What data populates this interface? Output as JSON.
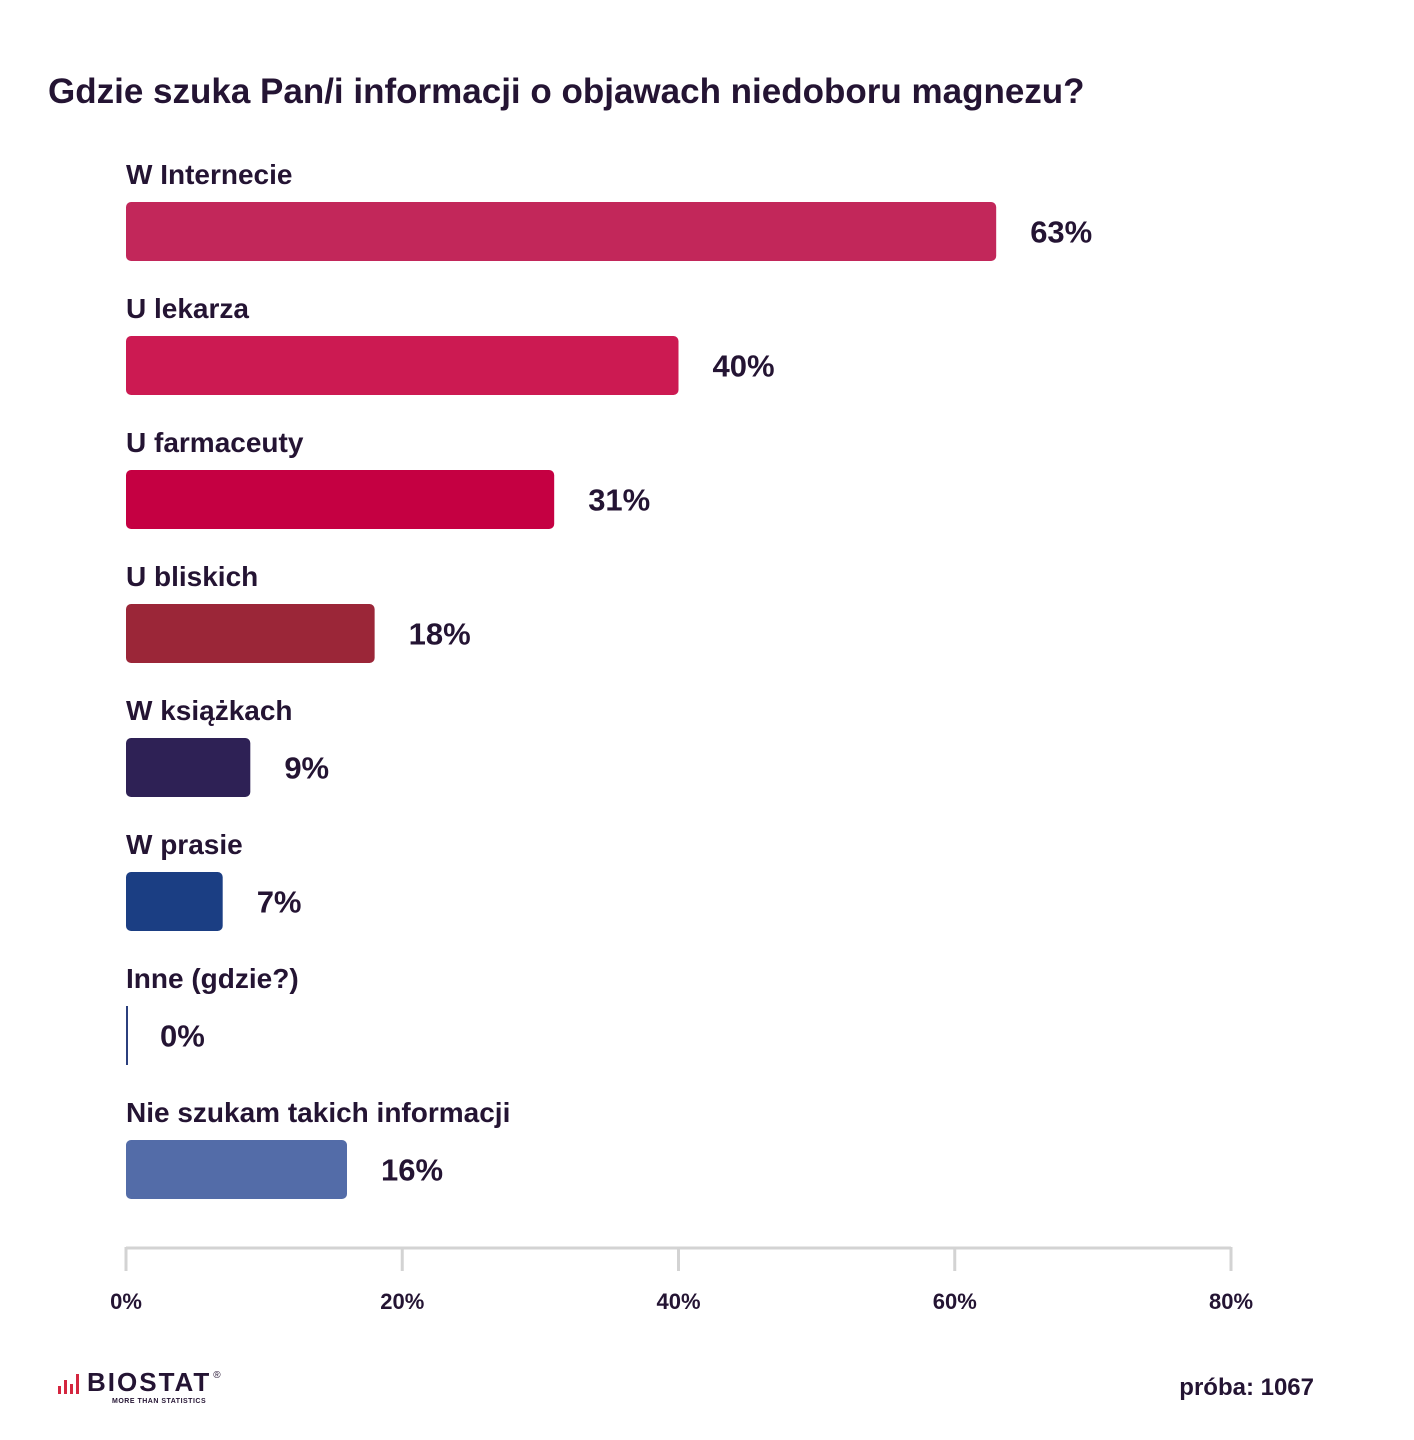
{
  "chart_data": {
    "type": "bar",
    "orientation": "horizontal",
    "title": "Gdzie szuka Pan/i informacji o objawach niedoboru magnezu?",
    "categories": [
      "W Internecie",
      "U lekarza",
      "U farmaceuty",
      "U bliskich",
      "W książkach",
      "W prasie",
      "Inne (gdzie?)",
      "Nie szukam takich informacji"
    ],
    "values": [
      63,
      40,
      31,
      18,
      9,
      7,
      0,
      16
    ],
    "value_labels": [
      "63%",
      "40%",
      "31%",
      "18%",
      "9%",
      "7%",
      "0%",
      "16%"
    ],
    "colors": [
      "#c2275a",
      "#cc1a52",
      "#c50042",
      "#9b2638",
      "#2e2155",
      "#1b3e83",
      "#2b3f7d",
      "#536ca8"
    ],
    "xlim": [
      0,
      80
    ],
    "xticks": [
      0,
      20,
      40,
      60,
      80
    ],
    "xtick_labels": [
      "0%",
      "20%",
      "40%",
      "60%",
      "80%"
    ],
    "xlabel": "",
    "ylabel": "",
    "grid": false,
    "axis_color": "#d3d3d3"
  },
  "footer": {
    "sample": "próba: 1067",
    "logo_text": "BIOSTAT",
    "logo_reg": "®",
    "logo_tagline": "MORE THAN STATISTICS",
    "logo_color": "#d4263f"
  }
}
